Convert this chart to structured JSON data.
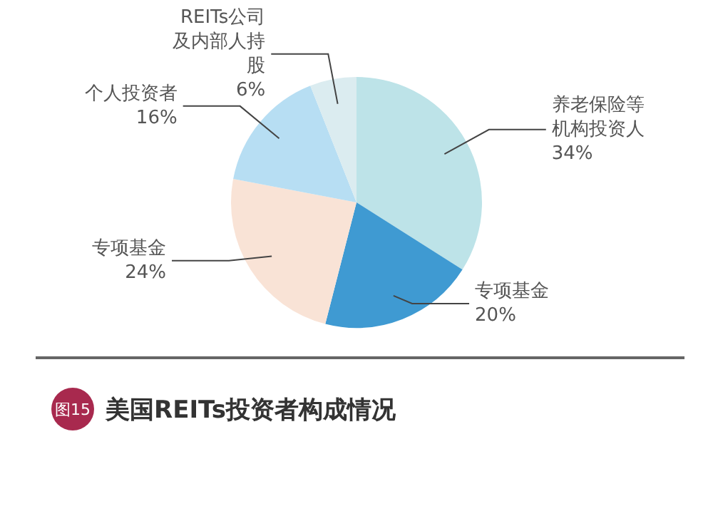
{
  "chart_data": {
    "type": "pie",
    "title": "美国REITs投资者构成情况",
    "annotations": [
      "图15"
    ],
    "categories": [
      "养老保险等机构投资人",
      "专项基金",
      "专项基金",
      "个人投资者",
      "REITs公司及内部人持股"
    ],
    "values": [
      34,
      20,
      24,
      16,
      6
    ],
    "colors": [
      "#bde3e8",
      "#3f9ad2",
      "#f9e3d6",
      "#b7def3",
      "#dbecf0"
    ],
    "value_labels": [
      "34%",
      "20%",
      "24%",
      "16%",
      "6%"
    ],
    "legend": false
  }
}
